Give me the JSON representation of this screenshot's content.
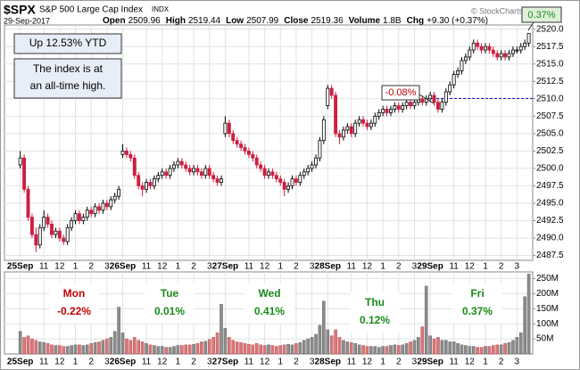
{
  "header": {
    "symbol": "$SPX",
    "name": "S&P 500 Large Cap Index",
    "exchange": "INDX",
    "date": "29-Sep-2017",
    "copyright": "© StockCharts.com",
    "stats": [
      {
        "label": "Open",
        "value": "2509.96"
      },
      {
        "label": "High",
        "value": "2519.44"
      },
      {
        "label": "Low",
        "value": "2507.99"
      },
      {
        "label": "Close",
        "value": "2519.36"
      },
      {
        "label": "Volume",
        "value": "1.8B"
      },
      {
        "label": "Chg",
        "value": "+9.30 (+0.37%)"
      }
    ]
  },
  "annotations": {
    "ytd": "Up 12.53% YTD",
    "high_lines": [
      "The index is at",
      "an all-time high."
    ],
    "open_change": "-0.08%",
    "close_change": "0.37%"
  },
  "day_changes": [
    {
      "day": "Mon",
      "change": "-0.22%",
      "color": "#c00000"
    },
    {
      "day": "Tue",
      "change": "0.01%",
      "color": "#1a8a1a"
    },
    {
      "day": "Wed",
      "change": "0.41%",
      "color": "#1a8a1a"
    },
    {
      "day": "Thu",
      "change": "0.12%",
      "color": "#1a8a1a"
    },
    {
      "day": "Fri",
      "change": "0.37%",
      "color": "#1a8a1a"
    }
  ],
  "chart_data": {
    "type": "candlestick",
    "grid": true,
    "up_color": "#000000",
    "down_color": "#cc1f3f",
    "volume_up_color": "#8c8c8c",
    "volume_down_color": "#d9777a",
    "reference_line": 2510.06,
    "reference_color": "#0000cc",
    "xlim": [
      -4,
      130
    ],
    "xticks": [
      {
        "value": 0,
        "label": "25Sep"
      },
      {
        "value": 6,
        "label": "11"
      },
      {
        "value": 10,
        "label": "12"
      },
      {
        "value": 14,
        "label": "1"
      },
      {
        "value": 18,
        "label": "2"
      },
      {
        "value": 22,
        "label": "3"
      },
      {
        "value": 26,
        "label": "26Sep"
      },
      {
        "value": 32,
        "label": "11"
      },
      {
        "value": 36,
        "label": "12"
      },
      {
        "value": 40,
        "label": "1"
      },
      {
        "value": 44,
        "label": "2"
      },
      {
        "value": 48,
        "label": "3"
      },
      {
        "value": 52,
        "label": "27Sep"
      },
      {
        "value": 58,
        "label": "11"
      },
      {
        "value": 62,
        "label": "12"
      },
      {
        "value": 66,
        "label": "1"
      },
      {
        "value": 70,
        "label": "2"
      },
      {
        "value": 74,
        "label": "3"
      },
      {
        "value": 78,
        "label": "28Sep"
      },
      {
        "value": 84,
        "label": "11"
      },
      {
        "value": 88,
        "label": "12"
      },
      {
        "value": 92,
        "label": "1"
      },
      {
        "value": 96,
        "label": "2"
      },
      {
        "value": 100,
        "label": "3"
      },
      {
        "value": 104,
        "label": "29Sep"
      },
      {
        "value": 110,
        "label": "11"
      },
      {
        "value": 114,
        "label": "12"
      },
      {
        "value": 118,
        "label": "1"
      },
      {
        "value": 122,
        "label": "2"
      },
      {
        "value": 126,
        "label": "3"
      }
    ],
    "ylim": [
      2486.8,
      2520.6
    ],
    "yticks": [
      2487.5,
      {
        "value": 2490,
        "label": "2490.0"
      },
      2492.5,
      {
        "value": 2495,
        "label": "2495.0"
      },
      2497.5,
      {
        "value": 2500,
        "label": "2500.0"
      },
      2502.5,
      {
        "value": 2505,
        "label": "2505.0"
      },
      2507.5,
      {
        "value": 2510,
        "label": "2510.0"
      },
      2512.5,
      {
        "value": 2515,
        "label": "2515.0"
      },
      2517.5,
      {
        "value": 2520,
        "label": "2520.0"
      }
    ],
    "volume_ylim": [
      0,
      272
    ],
    "volume_yticks": [
      {
        "value": 50,
        "label": "50M"
      },
      {
        "value": 100,
        "label": "100M"
      },
      {
        "value": 150,
        "label": "150M"
      },
      {
        "value": 200,
        "label": "200M"
      },
      {
        "value": 250,
        "label": "250M"
      }
    ],
    "open": [
      2500.5,
      2501.5,
      2497.0,
      2493.0,
      2490.5,
      2489.0,
      2491.5,
      2493.0,
      2492.0,
      2490.5,
      2491.0,
      2490.0,
      2489.5,
      2491.5,
      2492.5,
      2493.5,
      2492.5,
      2493.0,
      2494.0,
      2493.5,
      2494.5,
      2494.0,
      2495.0,
      2494.5,
      2495.5,
      2496.0,
      2502.0,
      2502.5,
      2502.0,
      2501.5,
      2499.0,
      2497.5,
      2497.0,
      2498.0,
      2497.5,
      2498.5,
      2499.0,
      2499.5,
      2499.0,
      2500.0,
      2500.5,
      2501.0,
      2500.5,
      2500.0,
      2499.5,
      2500.0,
      2499.5,
      2499.0,
      2500.0,
      2499.0,
      2498.5,
      2498.0,
      2505.0,
      2506.5,
      2505.0,
      2504.0,
      2503.5,
      2503.0,
      2502.5,
      2502.0,
      2501.5,
      2500.5,
      2500.0,
      2499.0,
      2499.5,
      2499.0,
      2498.5,
      2498.0,
      2497.0,
      2497.5,
      2498.5,
      2498.0,
      2499.0,
      2499.5,
      2500.0,
      2500.5,
      2501.5,
      2504.0,
      2509.0,
      2511.5,
      2510.5,
      2505.0,
      2504.5,
      2505.5,
      2506.0,
      2505.0,
      2506.5,
      2507.0,
      2506.5,
      2506.0,
      2506.5,
      2507.5,
      2508.0,
      2508.5,
      2508.0,
      2508.5,
      2509.0,
      2508.5,
      2509.0,
      2509.5,
      2509.0,
      2509.5,
      2510.0,
      2509.5,
      2510.0,
      2510.5,
      2509.5,
      2508.5,
      2509.5,
      2511.0,
      2512.0,
      2513.5,
      2514.0,
      2515.5,
      2516.0,
      2517.0,
      2518.0,
      2517.5,
      2517.0,
      2517.5,
      2517.0,
      2516.5,
      2516.0,
      2516.5,
      2516.0,
      2516.5,
      2517.0,
      2517.0,
      2517.5,
      2518.0
    ],
    "high": [
      2502.5,
      2502.0,
      2497.5,
      2493.5,
      2491.5,
      2492.0,
      2494.0,
      2493.5,
      2492.5,
      2491.5,
      2491.5,
      2490.5,
      2492.0,
      2493.0,
      2494.0,
      2494.0,
      2493.5,
      2494.5,
      2494.5,
      2495.0,
      2495.0,
      2495.5,
      2495.5,
      2496.0,
      2496.5,
      2497.5,
      2503.5,
      2503.0,
      2502.5,
      2502.0,
      2499.5,
      2498.0,
      2498.5,
      2498.5,
      2499.0,
      2499.5,
      2500.0,
      2500.0,
      2500.5,
      2501.0,
      2501.5,
      2501.5,
      2501.0,
      2500.5,
      2500.5,
      2500.5,
      2500.0,
      2500.5,
      2500.5,
      2499.5,
      2499.0,
      2499.0,
      2507.5,
      2507.0,
      2505.5,
      2504.5,
      2504.0,
      2503.5,
      2503.0,
      2502.5,
      2502.0,
      2501.0,
      2500.5,
      2500.0,
      2500.0,
      2499.5,
      2499.0,
      2498.5,
      2498.0,
      2499.0,
      2499.0,
      2499.5,
      2500.0,
      2500.5,
      2501.0,
      2502.0,
      2504.5,
      2507.5,
      2512.0,
      2512.0,
      2511.0,
      2505.5,
      2506.0,
      2506.5,
      2506.5,
      2507.0,
      2507.5,
      2507.5,
      2507.0,
      2507.0,
      2508.0,
      2508.5,
      2509.0,
      2509.0,
      2509.0,
      2509.5,
      2509.5,
      2509.5,
      2510.0,
      2510.0,
      2510.0,
      2510.5,
      2510.5,
      2510.5,
      2511.0,
      2511.0,
      2510.0,
      2510.0,
      2511.5,
      2512.5,
      2514.0,
      2514.5,
      2516.0,
      2516.5,
      2517.5,
      2518.5,
      2518.5,
      2518.0,
      2518.0,
      2518.0,
      2517.5,
      2517.0,
      2517.0,
      2517.0,
      2517.0,
      2517.5,
      2517.5,
      2518.0,
      2518.5,
      2519.4
    ],
    "low": [
      2500.0,
      2496.5,
      2492.5,
      2490.0,
      2488.0,
      2488.5,
      2491.0,
      2491.5,
      2490.0,
      2490.0,
      2489.5,
      2489.0,
      2489.0,
      2491.0,
      2492.0,
      2492.0,
      2492.0,
      2492.5,
      2493.0,
      2493.0,
      2493.5,
      2493.5,
      2494.0,
      2494.0,
      2495.0,
      2495.5,
      2501.5,
      2501.5,
      2501.0,
      2498.5,
      2497.0,
      2496.0,
      2496.5,
      2497.0,
      2497.0,
      2498.0,
      2498.5,
      2498.5,
      2498.5,
      2499.5,
      2500.0,
      2500.0,
      2499.5,
      2499.0,
      2499.0,
      2499.0,
      2498.5,
      2498.5,
      2498.5,
      2498.0,
      2497.5,
      2497.5,
      2504.5,
      2504.5,
      2503.5,
      2503.0,
      2502.5,
      2502.0,
      2501.5,
      2501.0,
      2500.0,
      2499.5,
      2498.5,
      2498.5,
      2498.5,
      2498.0,
      2497.5,
      2496.0,
      2496.5,
      2497.0,
      2497.5,
      2497.5,
      2498.5,
      2499.0,
      2499.5,
      2500.0,
      2501.0,
      2503.5,
      2508.5,
      2510.0,
      2504.5,
      2503.5,
      2504.0,
      2505.0,
      2504.5,
      2504.5,
      2506.0,
      2506.0,
      2505.5,
      2505.5,
      2506.0,
      2507.0,
      2507.5,
      2507.5,
      2507.5,
      2508.0,
      2508.0,
      2508.0,
      2508.5,
      2508.5,
      2508.5,
      2509.0,
      2509.0,
      2509.0,
      2509.5,
      2509.0,
      2508.0,
      2508.0,
      2509.0,
      2510.5,
      2511.5,
      2513.0,
      2513.5,
      2515.0,
      2515.5,
      2516.5,
      2517.0,
      2516.5,
      2516.5,
      2516.5,
      2516.0,
      2515.5,
      2515.5,
      2515.5,
      2515.5,
      2516.0,
      2516.5,
      2516.5,
      2517.0,
      2517.5
    ],
    "close": [
      2501.5,
      2497.0,
      2493.0,
      2490.5,
      2489.0,
      2491.5,
      2493.0,
      2492.0,
      2490.5,
      2491.0,
      2490.0,
      2489.5,
      2491.5,
      2492.5,
      2493.5,
      2492.5,
      2493.0,
      2494.0,
      2493.5,
      2494.5,
      2494.0,
      2495.0,
      2494.5,
      2495.5,
      2496.0,
      2497.0,
      2502.5,
      2502.0,
      2501.5,
      2499.0,
      2497.5,
      2497.0,
      2498.0,
      2497.5,
      2498.5,
      2499.0,
      2499.5,
      2499.0,
      2500.0,
      2500.5,
      2501.0,
      2500.5,
      2500.0,
      2499.5,
      2500.0,
      2499.5,
      2499.0,
      2500.0,
      2499.0,
      2498.5,
      2498.0,
      2498.5,
      2506.5,
      2505.0,
      2504.0,
      2503.5,
      2503.0,
      2502.5,
      2502.0,
      2501.5,
      2500.5,
      2500.0,
      2499.0,
      2499.5,
      2499.0,
      2498.5,
      2498.0,
      2497.0,
      2497.5,
      2498.5,
      2498.0,
      2499.0,
      2499.5,
      2500.0,
      2500.5,
      2501.5,
      2504.0,
      2507.0,
      2511.5,
      2510.5,
      2505.0,
      2504.5,
      2505.5,
      2506.0,
      2505.0,
      2506.5,
      2507.0,
      2506.5,
      2506.0,
      2506.5,
      2507.5,
      2508.0,
      2508.5,
      2508.0,
      2508.5,
      2509.0,
      2508.5,
      2509.0,
      2509.5,
      2509.0,
      2509.5,
      2510.0,
      2509.5,
      2510.0,
      2510.5,
      2509.5,
      2508.5,
      2509.5,
      2511.0,
      2512.0,
      2513.5,
      2514.0,
      2515.5,
      2516.0,
      2517.0,
      2518.0,
      2517.5,
      2517.0,
      2517.5,
      2517.0,
      2516.5,
      2516.0,
      2516.5,
      2516.0,
      2516.5,
      2517.0,
      2517.0,
      2517.5,
      2518.0,
      2519.4
    ],
    "volume": [
      75,
      55,
      60,
      50,
      45,
      40,
      38,
      35,
      30,
      28,
      28,
      25,
      25,
      28,
      30,
      30,
      28,
      30,
      35,
      38,
      40,
      45,
      50,
      55,
      75,
      155,
      70,
      50,
      45,
      55,
      45,
      40,
      35,
      30,
      28,
      25,
      25,
      22,
      22,
      25,
      28,
      28,
      30,
      30,
      32,
      35,
      40,
      42,
      48,
      55,
      70,
      165,
      85,
      55,
      45,
      40,
      38,
      35,
      32,
      30,
      35,
      30,
      28,
      30,
      28,
      25,
      28,
      30,
      32,
      30,
      35,
      38,
      45,
      50,
      55,
      65,
      95,
      175,
      80,
      60,
      80,
      55,
      45,
      40,
      38,
      35,
      30,
      28,
      25,
      25,
      25,
      22,
      25,
      25,
      28,
      30,
      28,
      30,
      35,
      40,
      45,
      55,
      90,
      225,
      60,
      50,
      55,
      45,
      45,
      40,
      40,
      35,
      30,
      28,
      25,
      25,
      22,
      22,
      25,
      25,
      28,
      30,
      30,
      35,
      38,
      45,
      55,
      70,
      190,
      265
    ]
  }
}
